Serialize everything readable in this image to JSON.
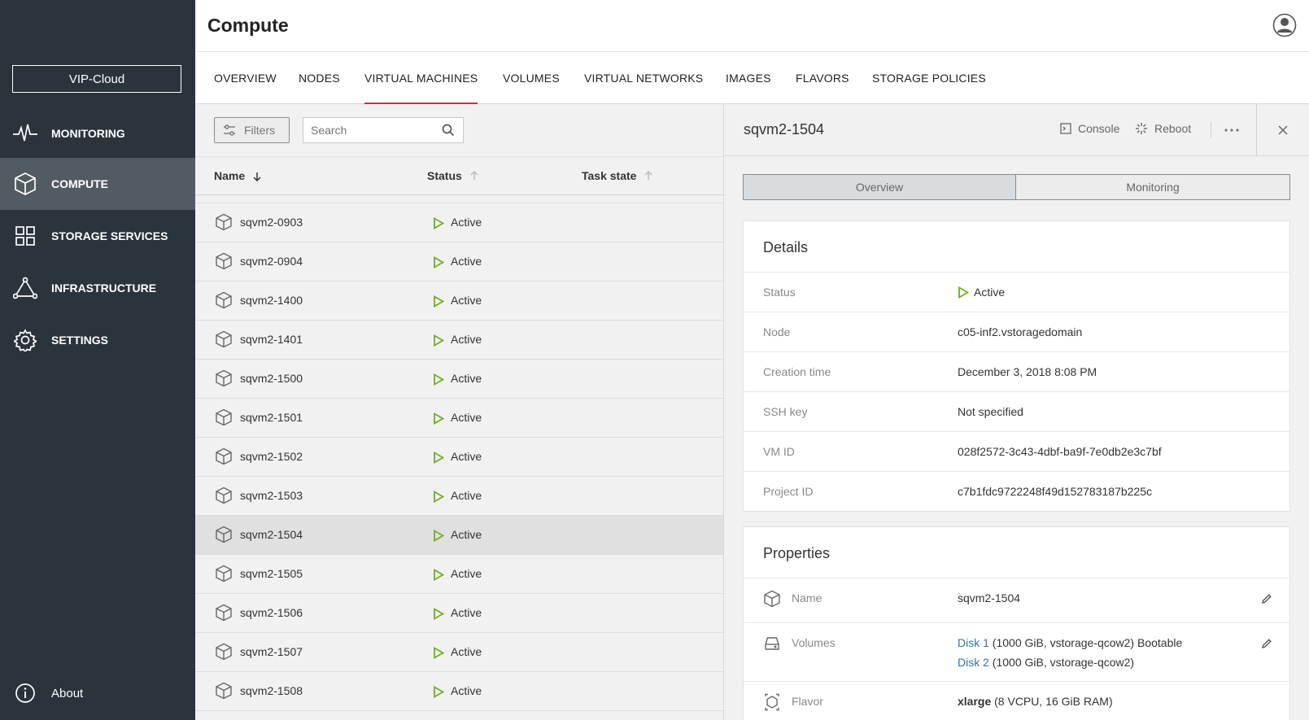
{
  "sidebar": {
    "cloud_name": "VIP-Cloud",
    "items": [
      {
        "label": "MONITORING",
        "icon": "pulse-icon"
      },
      {
        "label": "COMPUTE",
        "icon": "cube-icon"
      },
      {
        "label": "STORAGE SERVICES",
        "icon": "grid-icon"
      },
      {
        "label": "INFRASTRUCTURE",
        "icon": "triangle-nodes-icon"
      },
      {
        "label": "SETTINGS",
        "icon": "gear-icon"
      }
    ],
    "about_label": "About"
  },
  "header": {
    "title": "Compute"
  },
  "tabs": [
    "OVERVIEW",
    "NODES",
    "VIRTUAL MACHINES",
    "VOLUMES",
    "VIRTUAL NETWORKS",
    "IMAGES",
    "FLAVORS",
    "STORAGE POLICIES"
  ],
  "active_tab": "VIRTUAL MACHINES",
  "list": {
    "filters_label": "Filters",
    "search_placeholder": "Search",
    "columns": {
      "name": "Name",
      "status": "Status",
      "task_state": "Task state"
    },
    "rows": [
      {
        "name": "sqvm2-0903",
        "status": "Active"
      },
      {
        "name": "sqvm2-0904",
        "status": "Active"
      },
      {
        "name": "sqvm2-1400",
        "status": "Active"
      },
      {
        "name": "sqvm2-1401",
        "status": "Active"
      },
      {
        "name": "sqvm2-1500",
        "status": "Active"
      },
      {
        "name": "sqvm2-1501",
        "status": "Active"
      },
      {
        "name": "sqvm2-1502",
        "status": "Active"
      },
      {
        "name": "sqvm2-1503",
        "status": "Active"
      },
      {
        "name": "sqvm2-1504",
        "status": "Active"
      },
      {
        "name": "sqvm2-1505",
        "status": "Active"
      },
      {
        "name": "sqvm2-1506",
        "status": "Active"
      },
      {
        "name": "sqvm2-1507",
        "status": "Active"
      },
      {
        "name": "sqvm2-1508",
        "status": "Active"
      }
    ],
    "selected": "sqvm2-1504"
  },
  "detail": {
    "title": "sqvm2-1504",
    "console_label": "Console",
    "reboot_label": "Reboot",
    "segments": [
      "Overview",
      "Monitoring"
    ],
    "details_title": "Details",
    "details": [
      {
        "key": "Status",
        "value": "Active"
      },
      {
        "key": "Node",
        "value": "c05-inf2.vstoragedomain"
      },
      {
        "key": "Creation time",
        "value": "December 3, 2018 8:08 PM"
      },
      {
        "key": "SSH key",
        "value": "Not specified"
      },
      {
        "key": "VM ID",
        "value": "028f2572-3c43-4dbf-ba9f-7e0db2e3c7bf"
      },
      {
        "key": "Project ID",
        "value": "c7b1fdc9722248f49d152783187b225c"
      }
    ],
    "properties_title": "Properties",
    "properties": {
      "name_key": "Name",
      "name_value": "sqvm2-1504",
      "volumes_key": "Volumes",
      "disk1_link": "Disk 1",
      "disk1_rest": " (1000 GiB, vstorage-qcow2) Bootable",
      "disk2_link": "Disk 2",
      "disk2_rest": " (1000 GiB, vstorage-qcow2)",
      "flavor_key": "Flavor",
      "flavor_name": "xlarge",
      "flavor_rest": " (8 VCPU, 16 GiB RAM)"
    }
  },
  "colors": {
    "sidebar_bg": "#2b333b",
    "accent_red": "#d0302c",
    "active_green": "#6fae24",
    "link_blue": "#38729e"
  }
}
